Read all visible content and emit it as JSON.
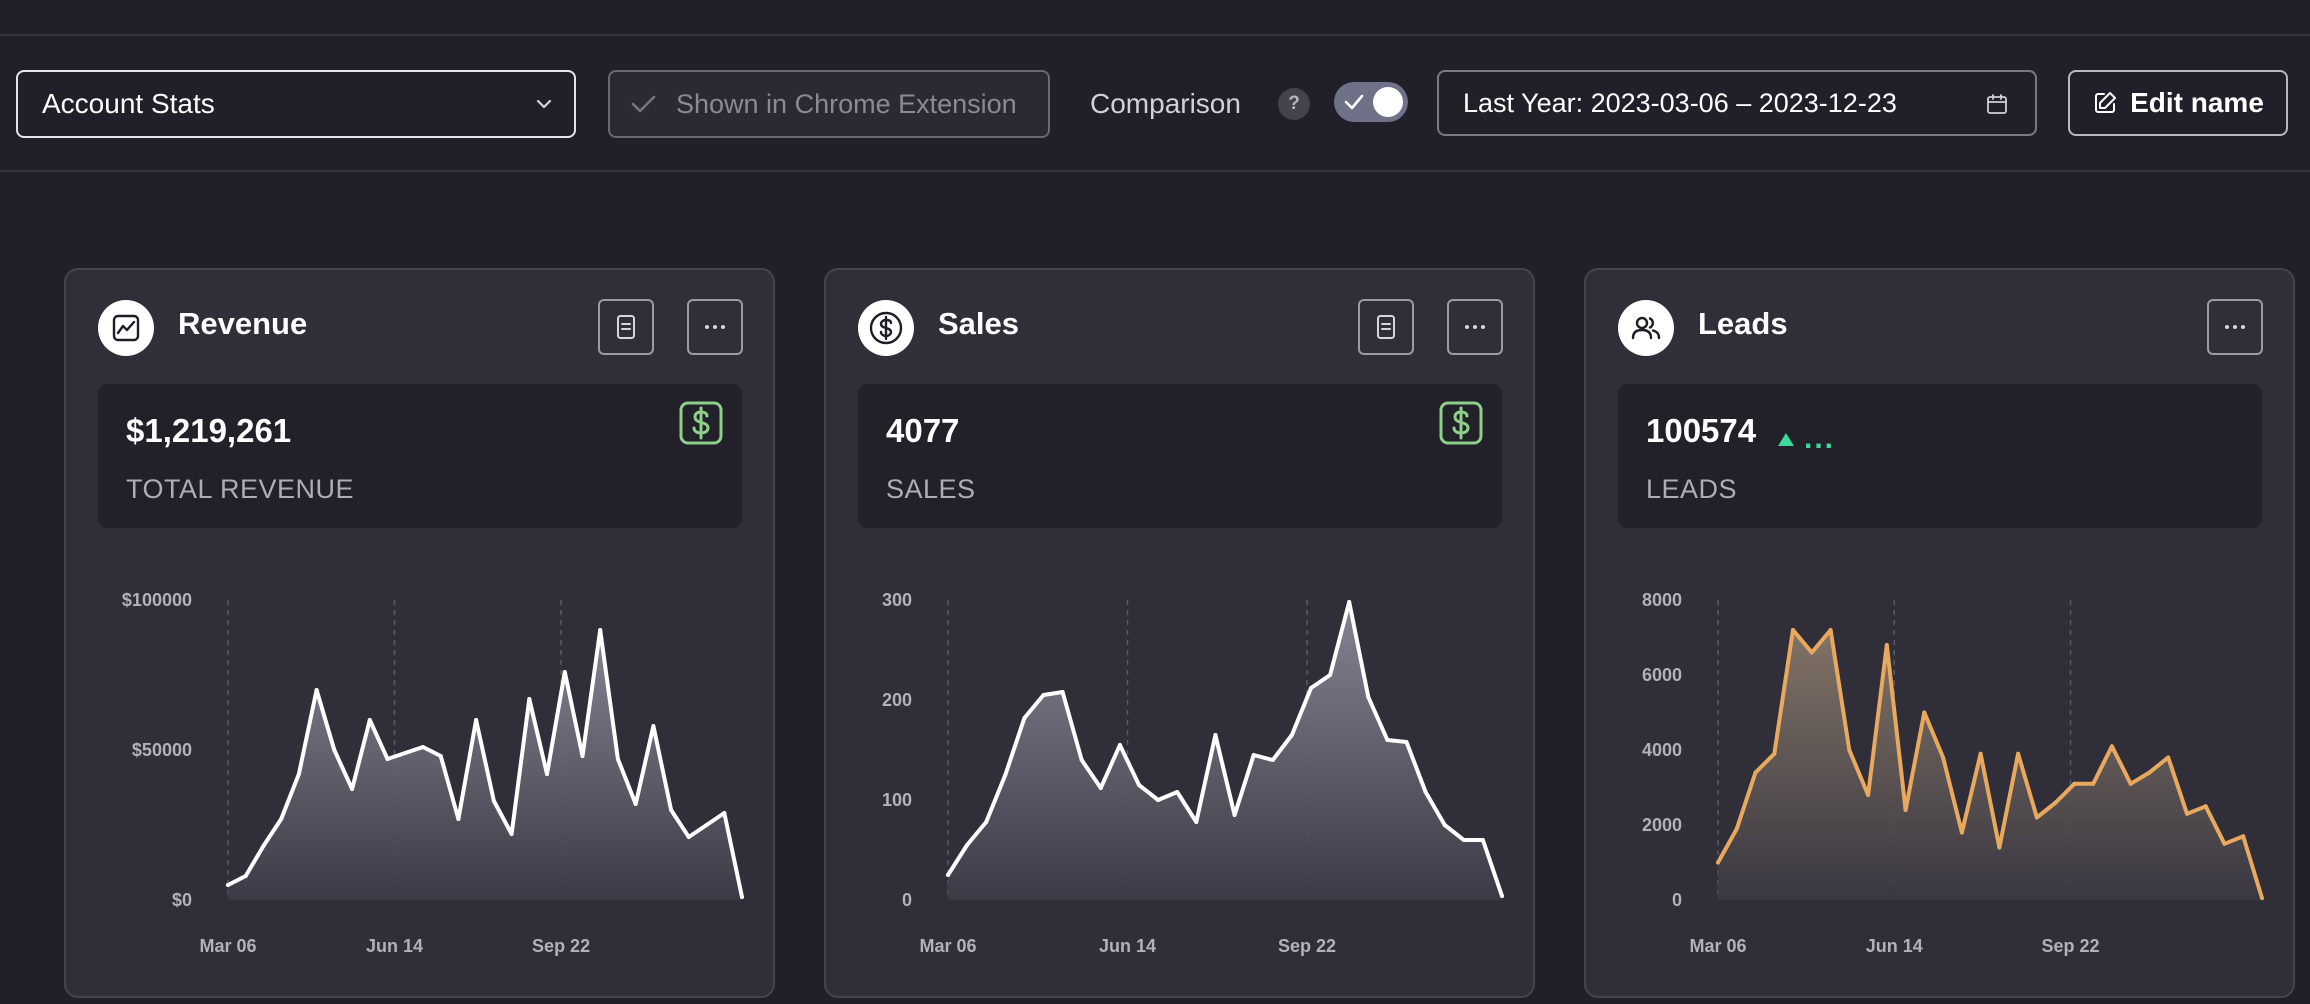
{
  "toolbar": {
    "dashboard_select": "Account Stats",
    "extension_button": "Shown in Chrome Extension",
    "comparison_label": "Comparison",
    "help_symbol": "?",
    "comparison_enabled": true,
    "date_range": "Last Year: 2023-03-06 – 2023-12-23",
    "edit_name_label": "Edit name"
  },
  "colors": {
    "background": "#21202a",
    "card": "#302f39",
    "positive": "#3fd79a",
    "badge_green": "#8ecf8a",
    "leads_line": "#e8a95e"
  },
  "cards": [
    {
      "title": "Revenue",
      "icon": "chart-trend-icon",
      "stat_value": "$1,219,261",
      "stat_label": "TOTAL REVENUE",
      "badge_icon": "dollar-badge-icon",
      "chart_data": {
        "type": "area",
        "line_color": "#ffffff",
        "x_ticks": [
          "Mar 06",
          "Jun 14",
          "Sep 22"
        ],
        "y_ticks": [
          "$100000",
          "$50000",
          "$0"
        ],
        "ylim": [
          0,
          100000
        ],
        "values": [
          5000,
          8000,
          18000,
          27000,
          42000,
          70000,
          50000,
          37000,
          60000,
          47000,
          49000,
          51000,
          48000,
          27000,
          60000,
          33000,
          22000,
          67000,
          42000,
          76000,
          48000,
          90000,
          47000,
          32000,
          58000,
          30000,
          21000,
          25000,
          29000,
          1000
        ]
      }
    },
    {
      "title": "Sales",
      "icon": "dollar-circle-icon",
      "stat_value": "4077",
      "stat_label": "SALES",
      "badge_icon": "dollar-badge-icon",
      "chart_data": {
        "type": "area",
        "line_color": "#ffffff",
        "x_ticks": [
          "Mar 06",
          "Jun 14",
          "Sep 22"
        ],
        "y_ticks": [
          "300",
          "200",
          "100",
          "0"
        ],
        "ylim": [
          0,
          300
        ],
        "values": [
          25,
          55,
          78,
          125,
          182,
          205,
          208,
          140,
          112,
          155,
          115,
          100,
          108,
          78,
          165,
          85,
          145,
          140,
          165,
          212,
          225,
          298,
          203,
          160,
          158,
          108,
          75,
          60,
          60,
          4
        ]
      }
    },
    {
      "title": "Leads",
      "icon": "users-icon",
      "stat_value": "100574",
      "stat_label": "LEADS",
      "trend": "...",
      "chart_data": {
        "type": "area",
        "line_color": "#e8a95e",
        "x_ticks": [
          "Mar 06",
          "Jun 14",
          "Sep 22"
        ],
        "y_ticks": [
          "8000",
          "6000",
          "4000",
          "2000",
          "0"
        ],
        "ylim": [
          0,
          8000
        ],
        "values": [
          1000,
          1900,
          3400,
          3900,
          7200,
          6600,
          7200,
          4000,
          2800,
          6800,
          2400,
          5000,
          3800,
          1800,
          3900,
          1400,
          3900,
          2200,
          2600,
          3100,
          3100,
          4100,
          3100,
          3400,
          3800,
          2300,
          2500,
          1500,
          1700,
          50
        ]
      }
    }
  ]
}
